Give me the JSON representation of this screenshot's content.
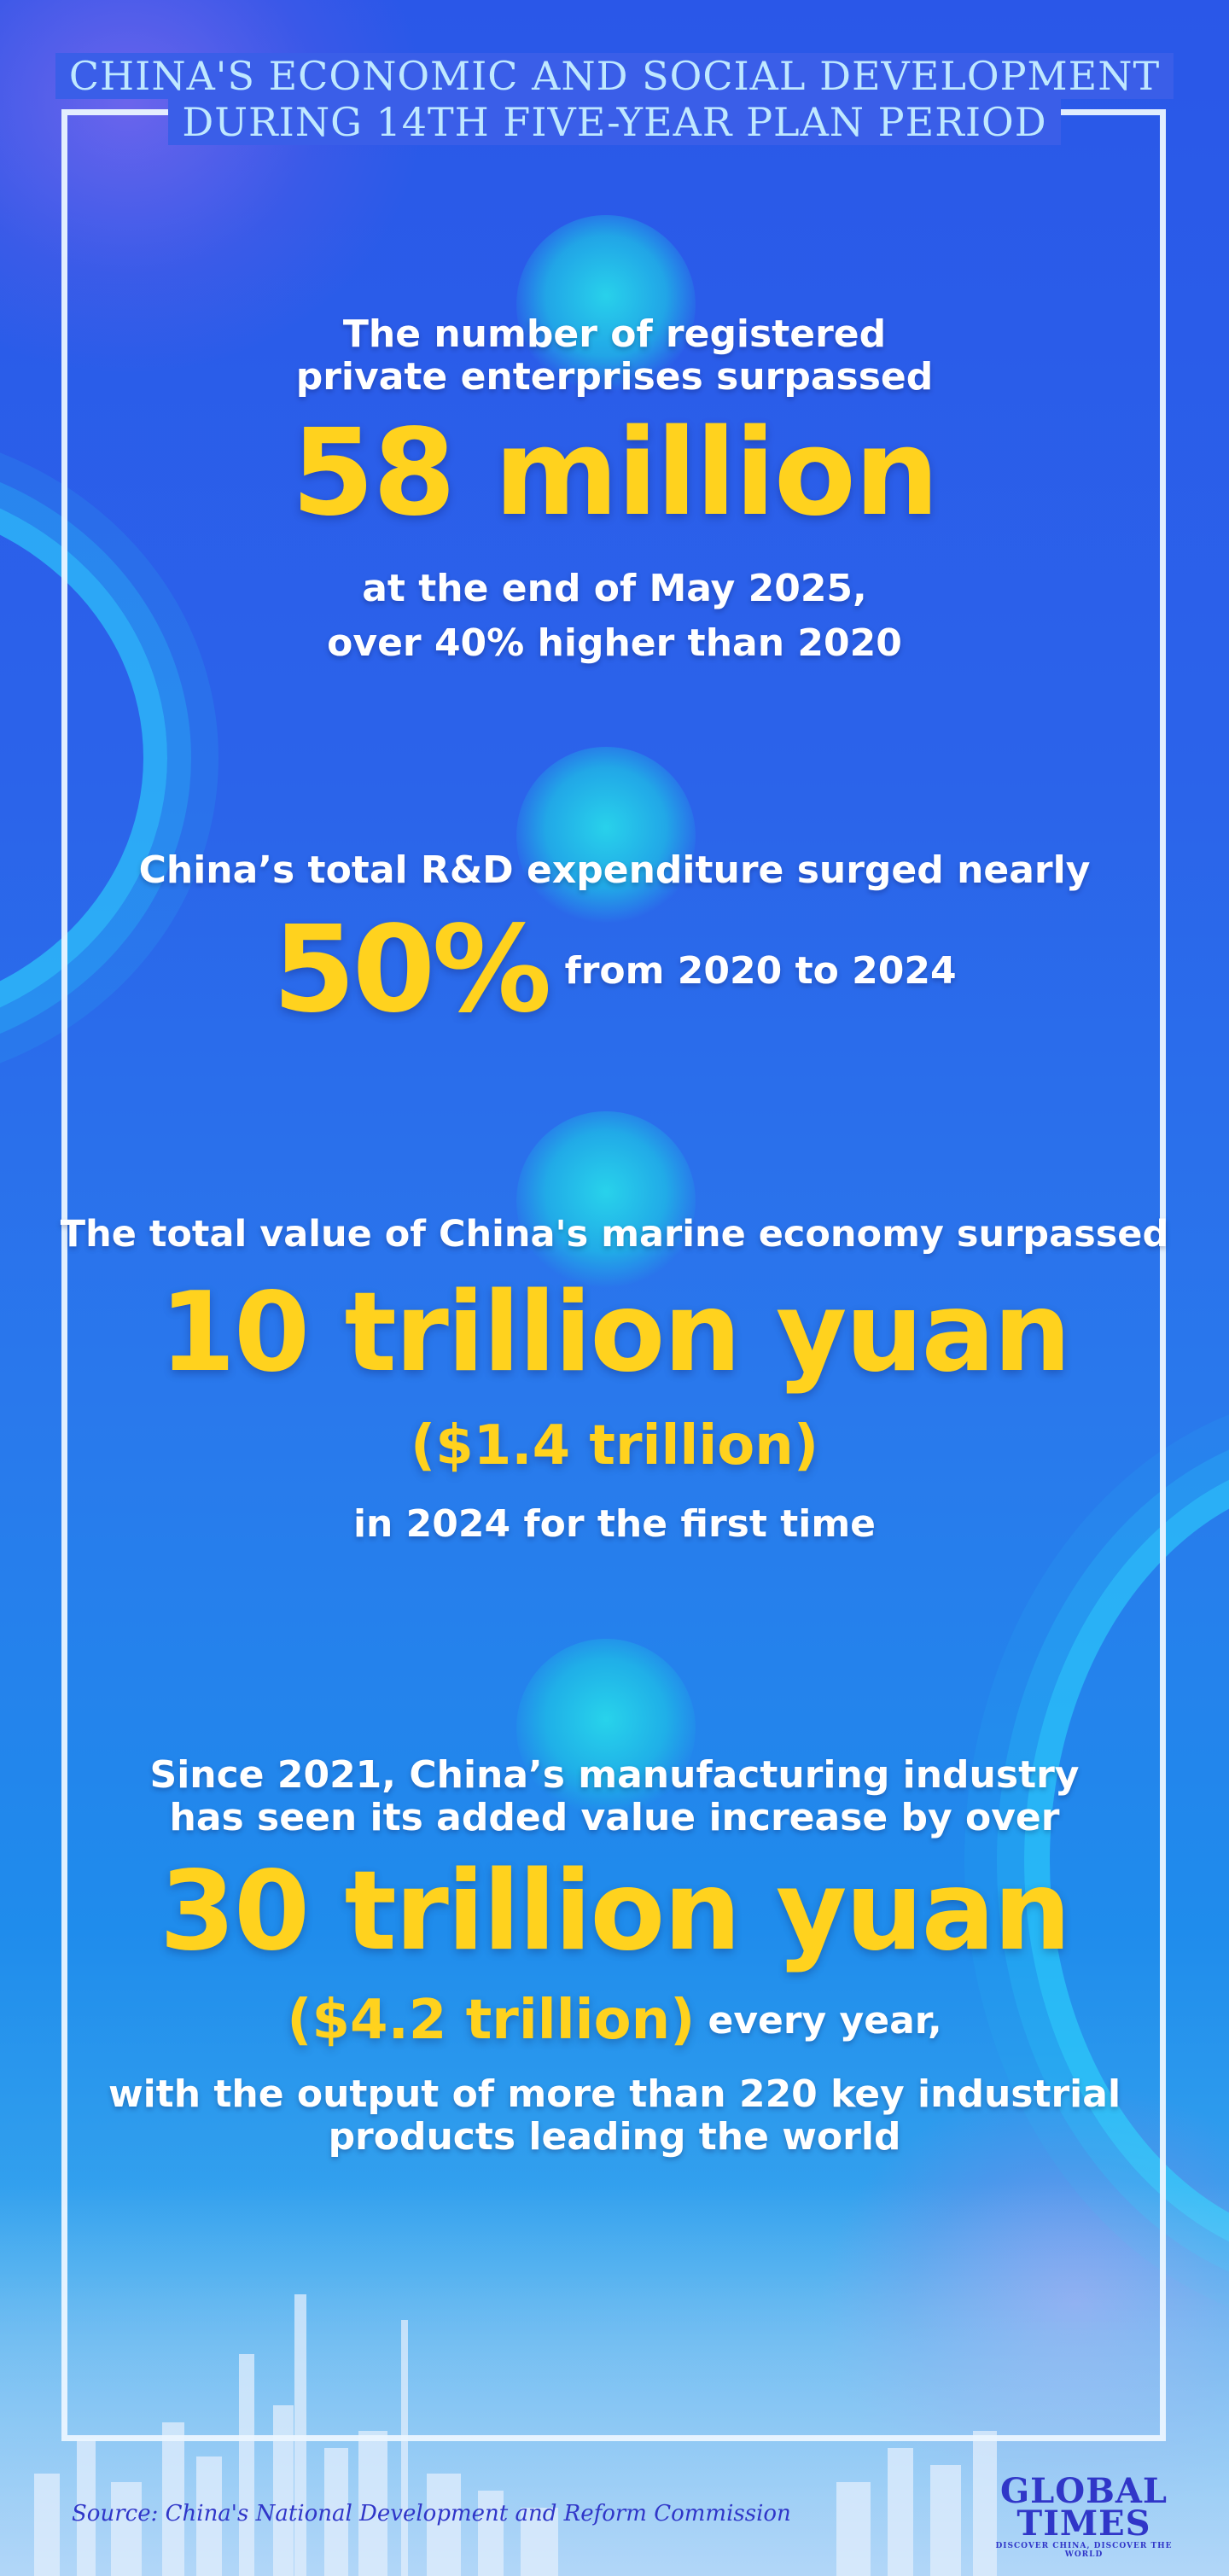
{
  "header": {
    "line1": "CHINA'S ECONOMIC AND SOCIAL DEVELOPMENT",
    "line2": "DURING 14TH FIVE-YEAR PLAN PERIOD"
  },
  "section1": {
    "intro1": "The number of registered",
    "intro2": "private enterprises surpassed",
    "figure": "58 million",
    "after1": "at the end of May 2025,",
    "after2": "over 40% higher than 2020"
  },
  "section2": {
    "intro": "China’s total R&D expenditure surged nearly",
    "figure": "50%",
    "after": "from 2020 to 2024"
  },
  "section3": {
    "intro": "The total value of China's marine economy surpassed",
    "figure": "10 trillion yuan",
    "usd": "($1.4 trillion)",
    "after": "in 2024 for the first time"
  },
  "section4": {
    "intro1": "Since 2021, China’s manufacturing industry",
    "intro2": "has seen its added value increase by over",
    "figure": "30 trillion yuan",
    "usd": "($4.2 trillion)",
    "after_inline": "every year,",
    "after1": "with the output of more than 220 key industrial",
    "after2": "products leading the world"
  },
  "footer": {
    "source": "Source: China's National Development and Reform Commission",
    "logo_line1": "GLOBAL",
    "logo_line2": "TIMES",
    "logo_tagline": "DISCOVER CHINA, DISCOVER THE WORLD"
  },
  "colors": {
    "highlight": "#ffd21e",
    "text": "#ffffff",
    "header": "#bfe8ff",
    "logo": "#3036c8"
  }
}
